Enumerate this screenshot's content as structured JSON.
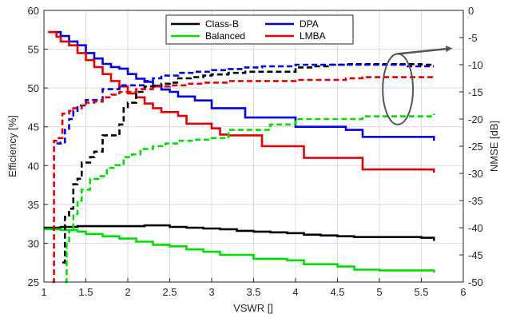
{
  "chart_data": {
    "type": "line",
    "xlabel": "VSWR []",
    "ylabel_left": "Efficiency [%]",
    "ylabel_right": "NMSE [dB]",
    "xlim": [
      1,
      6
    ],
    "ylim_left": [
      25,
      60
    ],
    "ylim_right": [
      -50,
      0
    ],
    "xticks": [
      "1",
      "1.5",
      "2",
      "2.5",
      "3",
      "3.5",
      "4",
      "4.5",
      "5",
      "5.5",
      "6"
    ],
    "yticks_left": [
      "25",
      "30",
      "35",
      "40",
      "45",
      "50",
      "55",
      "60"
    ],
    "yticks_right": [
      "-50",
      "-45",
      "-40",
      "-35",
      "-30",
      "-25",
      "-20",
      "-15",
      "-10",
      "-5",
      "0"
    ],
    "grid": true,
    "legend_position": "top-center",
    "series": [
      {
        "name": "Class-B",
        "color": "#000000",
        "axis": "left",
        "style": "solid",
        "points": [
          [
            1.0,
            32.0
          ],
          [
            1.2,
            32.1
          ],
          [
            1.4,
            32.2
          ],
          [
            1.6,
            32.2
          ],
          [
            1.8,
            32.2
          ],
          [
            2.0,
            32.2
          ],
          [
            2.2,
            32.3
          ],
          [
            2.35,
            32.3
          ],
          [
            2.5,
            32.1
          ],
          [
            2.7,
            32.0
          ],
          [
            2.9,
            31.9
          ],
          [
            3.1,
            31.8
          ],
          [
            3.3,
            31.6
          ],
          [
            3.5,
            31.5
          ],
          [
            3.7,
            31.4
          ],
          [
            3.9,
            31.3
          ],
          [
            4.1,
            31.1
          ],
          [
            4.3,
            31.0
          ],
          [
            4.5,
            30.9
          ],
          [
            4.7,
            30.8
          ],
          [
            5.0,
            30.8
          ],
          [
            5.3,
            30.8
          ],
          [
            5.5,
            30.7
          ],
          [
            5.65,
            30.3
          ]
        ]
      },
      {
        "name": "Balanced",
        "color": "#00e000",
        "axis": "left",
        "style": "solid",
        "points": [
          [
            1.0,
            31.8
          ],
          [
            1.2,
            31.7
          ],
          [
            1.4,
            31.5
          ],
          [
            1.5,
            31.2
          ],
          [
            1.7,
            30.9
          ],
          [
            1.9,
            30.6
          ],
          [
            2.1,
            30.2
          ],
          [
            2.3,
            29.8
          ],
          [
            2.5,
            29.6
          ],
          [
            2.7,
            29.2
          ],
          [
            2.9,
            28.9
          ],
          [
            3.1,
            28.5
          ],
          [
            3.3,
            28.5
          ],
          [
            3.5,
            28.0
          ],
          [
            3.7,
            28.0
          ],
          [
            3.9,
            27.8
          ],
          [
            4.1,
            27.3
          ],
          [
            4.3,
            27.3
          ],
          [
            4.5,
            27.0
          ],
          [
            4.7,
            26.6
          ],
          [
            5.0,
            26.5
          ],
          [
            5.3,
            26.5
          ],
          [
            5.5,
            26.5
          ],
          [
            5.65,
            26.2
          ]
        ]
      },
      {
        "name": "DPA",
        "color": "#0000e6",
        "axis": "left",
        "style": "solid",
        "points": [
          [
            1.05,
            57.2
          ],
          [
            1.2,
            56.7
          ],
          [
            1.3,
            56.0
          ],
          [
            1.4,
            55.5
          ],
          [
            1.5,
            54.5
          ],
          [
            1.6,
            53.8
          ],
          [
            1.7,
            53.1
          ],
          [
            1.8,
            52.7
          ],
          [
            1.9,
            52.5
          ],
          [
            2.0,
            51.8
          ],
          [
            2.1,
            51.2
          ],
          [
            2.2,
            50.8
          ],
          [
            2.3,
            50.3
          ],
          [
            2.4,
            49.8
          ],
          [
            2.5,
            49.5
          ],
          [
            2.6,
            48.9
          ],
          [
            2.8,
            48.4
          ],
          [
            3.0,
            47.4
          ],
          [
            3.2,
            47.4
          ],
          [
            3.4,
            46.2
          ],
          [
            3.6,
            46.2
          ],
          [
            3.8,
            46.2
          ],
          [
            4.0,
            45.0
          ],
          [
            4.2,
            45.0
          ],
          [
            4.4,
            45.0
          ],
          [
            4.6,
            44.6
          ],
          [
            4.8,
            43.7
          ],
          [
            5.0,
            43.7
          ],
          [
            5.3,
            43.7
          ],
          [
            5.5,
            43.7
          ],
          [
            5.65,
            43.2
          ]
        ]
      },
      {
        "name": "LMBA",
        "color": "#e60000",
        "axis": "left",
        "style": "solid",
        "points": [
          [
            1.05,
            57.2
          ],
          [
            1.15,
            56.6
          ],
          [
            1.2,
            56.0
          ],
          [
            1.3,
            55.5
          ],
          [
            1.4,
            54.5
          ],
          [
            1.5,
            53.6
          ],
          [
            1.6,
            52.7
          ],
          [
            1.7,
            51.8
          ],
          [
            1.8,
            50.9
          ],
          [
            1.9,
            50.2
          ],
          [
            2.0,
            49.3
          ],
          [
            2.1,
            48.8
          ],
          [
            2.2,
            48.0
          ],
          [
            2.3,
            47.4
          ],
          [
            2.4,
            46.9
          ],
          [
            2.5,
            46.9
          ],
          [
            2.6,
            46.4
          ],
          [
            2.7,
            45.4
          ],
          [
            2.8,
            45.4
          ],
          [
            3.0,
            44.8
          ],
          [
            3.1,
            44.0
          ],
          [
            3.2,
            43.9
          ],
          [
            3.4,
            43.9
          ],
          [
            3.6,
            42.5
          ],
          [
            3.8,
            42.5
          ],
          [
            4.0,
            42.5
          ],
          [
            4.1,
            41.0
          ],
          [
            4.3,
            41.0
          ],
          [
            4.6,
            41.0
          ],
          [
            4.8,
            39.5
          ],
          [
            5.0,
            39.5
          ],
          [
            5.3,
            39.5
          ],
          [
            5.5,
            39.5
          ],
          [
            5.65,
            39.1
          ]
        ]
      },
      {
        "name": "Class-B NMSE",
        "color": "#000000",
        "axis": "right",
        "style": "dashed",
        "points": [
          [
            1.22,
            -46.4
          ],
          [
            1.25,
            -38.0
          ],
          [
            1.3,
            -36.5
          ],
          [
            1.35,
            -32.0
          ],
          [
            1.4,
            -31.0
          ],
          [
            1.45,
            -28.0
          ],
          [
            1.55,
            -27.0
          ],
          [
            1.6,
            -26.0
          ],
          [
            1.7,
            -23.0
          ],
          [
            1.8,
            -23.0
          ],
          [
            1.9,
            -21.0
          ],
          [
            1.95,
            -18.0
          ],
          [
            2.0,
            -17.0
          ],
          [
            2.1,
            -15.0
          ],
          [
            2.2,
            -14.0
          ],
          [
            2.4,
            -13.5
          ],
          [
            2.5,
            -13.3
          ],
          [
            2.6,
            -12.5
          ],
          [
            2.75,
            -12.3
          ],
          [
            2.9,
            -12.0
          ],
          [
            3.0,
            -11.8
          ],
          [
            3.2,
            -11.5
          ],
          [
            3.4,
            -11.3
          ],
          [
            3.6,
            -11.3
          ],
          [
            3.8,
            -11.3
          ],
          [
            4.0,
            -10.5
          ],
          [
            4.2,
            -10.3
          ],
          [
            4.4,
            -10.0
          ],
          [
            4.6,
            -9.9
          ],
          [
            4.8,
            -9.9
          ],
          [
            5.0,
            -9.9
          ],
          [
            5.3,
            -9.9
          ],
          [
            5.5,
            -10.0
          ],
          [
            5.65,
            -10.0
          ]
        ]
      },
      {
        "name": "Balanced NMSE",
        "color": "#00e000",
        "axis": "right",
        "style": "dashed",
        "points": [
          [
            1.25,
            -50.0
          ],
          [
            1.27,
            -43.0
          ],
          [
            1.3,
            -40.5
          ],
          [
            1.35,
            -37.5
          ],
          [
            1.4,
            -35.0
          ],
          [
            1.45,
            -33.0
          ],
          [
            1.55,
            -31.0
          ],
          [
            1.65,
            -30.5
          ],
          [
            1.75,
            -29.0
          ],
          [
            1.85,
            -28.5
          ],
          [
            1.95,
            -27.0
          ],
          [
            2.05,
            -26.5
          ],
          [
            2.15,
            -25.5
          ],
          [
            2.3,
            -25.0
          ],
          [
            2.45,
            -24.5
          ],
          [
            2.6,
            -24.0
          ],
          [
            2.8,
            -23.8
          ],
          [
            3.0,
            -23.5
          ],
          [
            3.2,
            -22.0
          ],
          [
            3.5,
            -22.0
          ],
          [
            3.7,
            -21.0
          ],
          [
            3.9,
            -21.0
          ],
          [
            4.0,
            -20.0
          ],
          [
            4.3,
            -20.0
          ],
          [
            4.6,
            -20.0
          ],
          [
            4.8,
            -19.5
          ],
          [
            5.0,
            -19.5
          ],
          [
            5.3,
            -19.5
          ],
          [
            5.5,
            -19.5
          ],
          [
            5.65,
            -19.0
          ]
        ]
      },
      {
        "name": "DPA NMSE",
        "color": "#0000e6",
        "axis": "right",
        "style": "dashed",
        "points": [
          [
            1.15,
            -24.5
          ],
          [
            1.2,
            -24.3
          ],
          [
            1.25,
            -22.0
          ],
          [
            1.3,
            -20.0
          ],
          [
            1.35,
            -18.5
          ],
          [
            1.4,
            -17.5
          ],
          [
            1.5,
            -16.5
          ],
          [
            1.6,
            -16.5
          ],
          [
            1.7,
            -14.5
          ],
          [
            1.9,
            -13.8
          ],
          [
            2.0,
            -13.8
          ],
          [
            2.1,
            -13.8
          ],
          [
            2.2,
            -13.0
          ],
          [
            2.3,
            -12.5
          ],
          [
            2.4,
            -12.0
          ],
          [
            2.6,
            -11.5
          ],
          [
            2.8,
            -11.3
          ],
          [
            3.0,
            -11.0
          ],
          [
            3.2,
            -10.8
          ],
          [
            3.4,
            -10.5
          ],
          [
            3.6,
            -10.3
          ],
          [
            3.8,
            -10.3
          ],
          [
            4.0,
            -10.0
          ],
          [
            4.2,
            -10.0
          ],
          [
            4.4,
            -10.0
          ],
          [
            4.6,
            -10.0
          ],
          [
            4.8,
            -10.0
          ],
          [
            5.0,
            -10.0
          ],
          [
            5.3,
            -10.3
          ],
          [
            5.5,
            -10.3
          ],
          [
            5.65,
            -10.3
          ]
        ]
      },
      {
        "name": "LMBA NMSE",
        "color": "#e60000",
        "axis": "right",
        "style": "dashed",
        "points": [
          [
            1.1,
            -50.0
          ],
          [
            1.12,
            -24.0
          ],
          [
            1.15,
            -23.5
          ],
          [
            1.2,
            -23.5
          ],
          [
            1.22,
            -19.0
          ],
          [
            1.3,
            -18.5
          ],
          [
            1.35,
            -18.0
          ],
          [
            1.45,
            -17.5
          ],
          [
            1.5,
            -17.0
          ],
          [
            1.6,
            -16.8
          ],
          [
            1.7,
            -16.0
          ],
          [
            1.8,
            -15.5
          ],
          [
            1.9,
            -15.0
          ],
          [
            2.0,
            -15.0
          ],
          [
            2.1,
            -14.5
          ],
          [
            2.3,
            -14.0
          ],
          [
            2.5,
            -13.8
          ],
          [
            2.7,
            -13.5
          ],
          [
            2.9,
            -13.3
          ],
          [
            3.0,
            -13.3
          ],
          [
            3.2,
            -13.0
          ],
          [
            3.4,
            -13.0
          ],
          [
            3.6,
            -13.0
          ],
          [
            3.8,
            -13.0
          ],
          [
            4.0,
            -12.8
          ],
          [
            4.2,
            -12.8
          ],
          [
            4.4,
            -12.8
          ],
          [
            4.6,
            -12.5
          ],
          [
            4.8,
            -12.3
          ],
          [
            5.0,
            -12.3
          ],
          [
            5.3,
            -12.3
          ],
          [
            5.5,
            -12.3
          ],
          [
            5.65,
            -12.3
          ]
        ]
      }
    ],
    "legend": [
      {
        "label": "Class-B",
        "color": "#000000"
      },
      {
        "label": "DPA",
        "color": "#0000e6"
      },
      {
        "label": "Balanced",
        "color": "#00e000"
      },
      {
        "label": "LMBA",
        "color": "#e60000"
      }
    ],
    "annotations": [
      {
        "type": "ellipse",
        "center": [
          5.22,
          -14.5
        ],
        "radius_x": 0.18,
        "radius_y": 6.5
      },
      {
        "type": "arrow",
        "from": [
          5.22,
          -8.0
        ],
        "to": [
          5.85,
          -7.0
        ]
      }
    ]
  }
}
